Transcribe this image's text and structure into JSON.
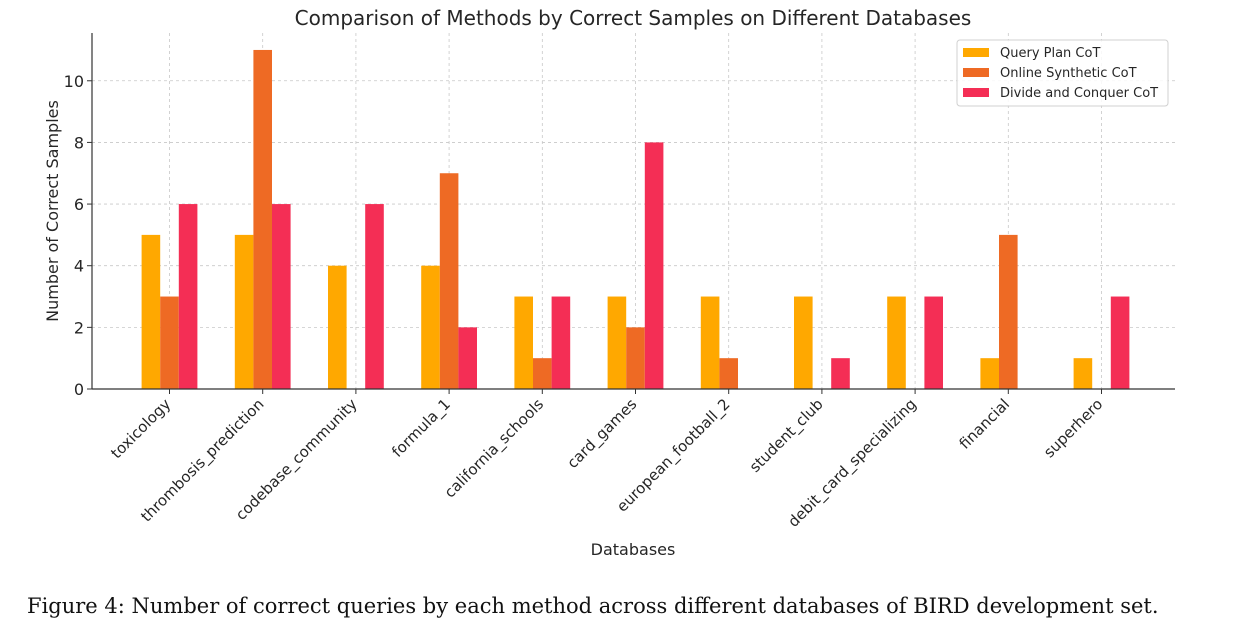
{
  "chart_data": {
    "type": "bar",
    "title": "Comparison of Methods by Correct Samples on Different Databases",
    "xlabel": "Databases",
    "ylabel": "Number of Correct Samples",
    "categories": [
      "toxicology",
      "thrombosis_prediction",
      "codebase_community",
      "formula_1",
      "california_schools",
      "card_games",
      "european_football_2",
      "student_club",
      "debit_card_specializing",
      "financial",
      "superhero"
    ],
    "series": [
      {
        "name": "Query Plan CoT",
        "color": "#FFA800",
        "values": [
          5,
          5,
          4,
          4,
          3,
          3,
          3,
          3,
          3,
          1,
          1
        ]
      },
      {
        "name": "Online Synthetic CoT",
        "color": "#EE6A24",
        "values": [
          3,
          11,
          0,
          7,
          1,
          2,
          1,
          0,
          0,
          5,
          0
        ]
      },
      {
        "name": "Divide and Conquer CoT",
        "color": "#F42E55",
        "values": [
          6,
          6,
          6,
          2,
          3,
          8,
          0,
          1,
          3,
          0,
          3
        ]
      }
    ],
    "yticks": [
      0,
      2,
      4,
      6,
      8,
      10
    ],
    "ylim": [
      0,
      11.55
    ],
    "grid": true,
    "legend_position": "top-right"
  },
  "caption": "Figure 4: Number of correct queries by each method across different databases of BIRD development set."
}
